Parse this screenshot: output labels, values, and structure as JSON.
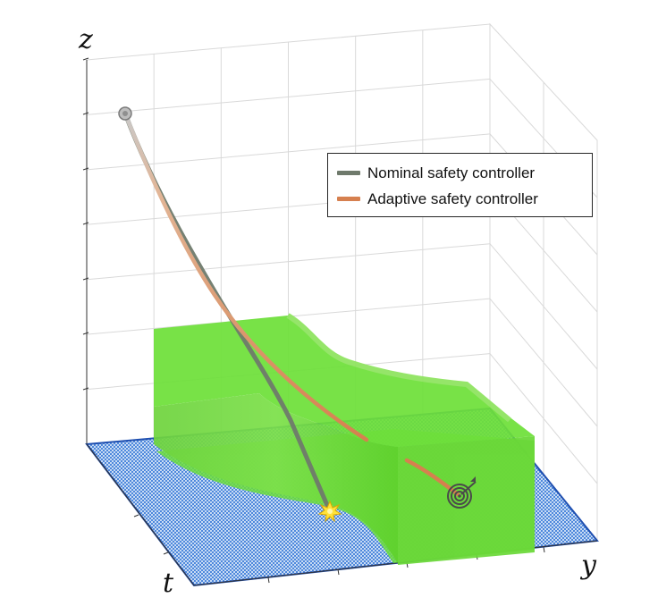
{
  "chart_data": {
    "type": "3d-surface-trajectory",
    "axes": {
      "x_label": "t",
      "y_label": "y",
      "z_label": "z",
      "ticks_labeled": false
    },
    "legend": [
      {
        "name": "Nominal safety controller",
        "color": "#6f7a6c"
      },
      {
        "name": "Adaptive safety controller",
        "color": "#d6804f"
      }
    ],
    "series": [
      {
        "name": "Nominal safety controller",
        "outcome": "collision",
        "end_marker": "collision-burst-icon"
      },
      {
        "name": "Adaptive safety controller",
        "outcome": "reaches target",
        "end_marker": "target-icon"
      }
    ],
    "start_marker": "start-point-icon",
    "regions": [
      {
        "name": "safe set (green volume)",
        "color": "#6ee03a"
      },
      {
        "name": "ground plane (blue mesh)",
        "color": "#3c7fd8"
      }
    ]
  }
}
